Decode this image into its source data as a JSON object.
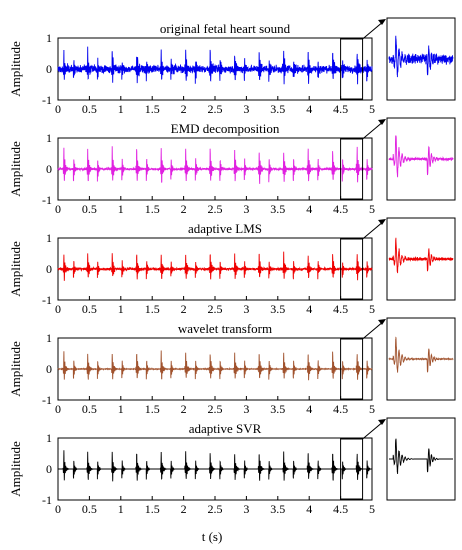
{
  "figure": {
    "xlabel": "t (s)"
  },
  "chart_data": [
    {
      "type": "line",
      "title": "original fetal heart sound",
      "ylabel": "Amplitude",
      "xlim": [
        0,
        5
      ],
      "ylim": [
        -1,
        1
      ],
      "xticks": [
        "0",
        "0.5",
        "1",
        "1.5",
        "2",
        "2.5",
        "3",
        "3.5",
        "4",
        "4.5",
        "5"
      ],
      "yticks": [
        "1",
        "0",
        "-1"
      ],
      "color": "#0000ee",
      "beats_s": [
        0.09,
        0.47,
        0.86,
        1.25,
        1.64,
        2.03,
        2.42,
        2.81,
        3.2,
        3.59,
        3.98,
        4.37,
        4.76
      ],
      "peak_amplitude": 0.85,
      "noise_amplitude": 0.35,
      "zoom_window_s": [
        4.5,
        4.85
      ]
    },
    {
      "type": "line",
      "title": "EMD decomposition",
      "ylabel": "Amplitude",
      "xlim": [
        0,
        5
      ],
      "ylim": [
        -1,
        1
      ],
      "xticks": [
        "0",
        "0.5",
        "1",
        "1.5",
        "2",
        "2.5",
        "3",
        "3.5",
        "4",
        "4.5",
        "5"
      ],
      "yticks": [
        "1",
        "0",
        "-1"
      ],
      "color": "#e020e0",
      "beats_s": [
        0.09,
        0.47,
        0.86,
        1.25,
        1.64,
        2.03,
        2.42,
        2.81,
        3.2,
        3.59,
        3.98,
        4.37,
        4.76
      ],
      "peak_amplitude": 0.9,
      "noise_amplitude": 0.1,
      "zoom_window_s": [
        4.5,
        4.85
      ]
    },
    {
      "type": "line",
      "title": "adaptive LMS",
      "ylabel": "Amplitude",
      "xlim": [
        0,
        5
      ],
      "ylim": [
        -1,
        1
      ],
      "xticks": [
        "0",
        "0.5",
        "1",
        "1.5",
        "2",
        "2.5",
        "3",
        "3.5",
        "4",
        "4.5",
        "5"
      ],
      "yticks": [
        "1",
        "0",
        "-1"
      ],
      "color": "#ee0000",
      "beats_s": [
        0.09,
        0.47,
        0.86,
        1.25,
        1.64,
        2.03,
        2.42,
        2.81,
        3.2,
        3.59,
        3.98,
        4.37,
        4.76
      ],
      "peak_amplitude": 0.7,
      "noise_amplitude": 0.12,
      "zoom_window_s": [
        4.5,
        4.85
      ]
    },
    {
      "type": "line",
      "title": "wavelet transform",
      "ylabel": "Amplitude",
      "xlim": [
        0,
        5
      ],
      "ylim": [
        -1,
        1
      ],
      "xticks": [
        "0",
        "0.5",
        "1",
        "1.5",
        "2",
        "2.5",
        "3",
        "3.5",
        "4",
        "4.5",
        "5"
      ],
      "yticks": [
        "1",
        "0",
        "-1"
      ],
      "color": "#a0522d",
      "beats_s": [
        0.09,
        0.47,
        0.86,
        1.25,
        1.64,
        2.03,
        2.42,
        2.81,
        3.2,
        3.59,
        3.98,
        4.37,
        4.76
      ],
      "peak_amplitude": 0.75,
      "noise_amplitude": 0.03,
      "zoom_window_s": [
        4.5,
        4.85
      ]
    },
    {
      "type": "line",
      "title": "adaptive SVR",
      "ylabel": "Amplitude",
      "xlim": [
        0,
        5
      ],
      "ylim": [
        -1,
        1
      ],
      "xticks": [
        "0",
        "0.5",
        "1",
        "1.5",
        "2",
        "2.5",
        "3",
        "3.5",
        "4",
        "4.5",
        "5"
      ],
      "yticks": [
        "1",
        "0",
        "-1"
      ],
      "color": "#000000",
      "beats_s": [
        0.09,
        0.47,
        0.86,
        1.25,
        1.64,
        2.03,
        2.42,
        2.81,
        3.2,
        3.59,
        3.98,
        4.37,
        4.76
      ],
      "peak_amplitude": 0.75,
      "noise_amplitude": 0.0,
      "zoom_window_s": [
        4.5,
        4.85
      ]
    }
  ]
}
